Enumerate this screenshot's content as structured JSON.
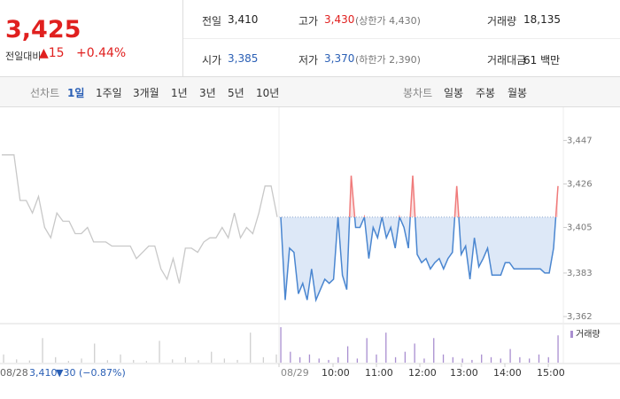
{
  "header": {
    "price": "3,425",
    "change_label": "전일대비",
    "change": "▲15",
    "change_rate": "+0.44%"
  },
  "summary": {
    "rows": [
      [
        {
          "label": "전일",
          "value": "3,410"
        },
        {
          "label": "고가",
          "value": "3,430",
          "extra": "(상한가 4,430)"
        },
        {
          "label": "거래량",
          "value": "18,135"
        }
      ],
      [
        {
          "label": "시가",
          "value": "3,385"
        },
        {
          "label": "저가",
          "value": "3,370",
          "extra": "(하한가 2,390)"
        },
        {
          "label": "거래대금",
          "value": "61 백만"
        }
      ]
    ]
  },
  "tabs": {
    "line_chart": "선차트",
    "periods": [
      "1일",
      "1주일",
      "3개월",
      "1년",
      "3년",
      "5년",
      "10년"
    ],
    "active": 0,
    "candle_chart": "봉차트",
    "candle_periods": [
      "일봉",
      "주봉",
      "월봉"
    ]
  },
  "chart_data": {
    "type": "line",
    "previous_day": {
      "color": "#c8c8c8",
      "values": [
        3440,
        3440,
        3440,
        3418,
        3418,
        3412,
        3420,
        3405,
        3400,
        3412,
        3408,
        3408,
        3402,
        3402,
        3405,
        3398,
        3398,
        3398,
        3396,
        3396,
        3396,
        3396,
        3390,
        3393,
        3396,
        3396,
        3385,
        3380,
        3390,
        3378,
        3395,
        3395,
        3393,
        3398,
        3400,
        3400,
        3405,
        3400,
        3412,
        3400,
        3405,
        3402,
        3412,
        3425,
        3425,
        3410
      ]
    },
    "today": {
      "color": "#4a86d0",
      "up_color": "#f07b7b",
      "values": [
        3410,
        3370,
        3395,
        3393,
        3373,
        3378,
        3370,
        3385,
        3370,
        3375,
        3380,
        3378,
        3380,
        3410,
        3382,
        3375,
        3430,
        3405,
        3405,
        3410,
        3390,
        3405,
        3400,
        3410,
        3400,
        3405,
        3395,
        3410,
        3405,
        3395,
        3430,
        3392,
        3388,
        3390,
        3385,
        3388,
        3390,
        3385,
        3390,
        3393,
        3425,
        3392,
        3396,
        3380,
        3400,
        3386,
        3390,
        3395,
        3382,
        3382,
        3382,
        3388,
        3388,
        3385,
        3385,
        3385,
        3385,
        3385,
        3385,
        3385,
        3383,
        3383,
        3395,
        3425
      ]
    },
    "baseline": 3410,
    "ylim": [
      3359,
      3463
    ],
    "yticks": [
      {
        "value": 3447,
        "label": "3,447"
      },
      {
        "value": 3426,
        "label": "3,426"
      },
      {
        "value": 3405,
        "label": "3,405"
      },
      {
        "value": 3383,
        "label": "3,383"
      },
      {
        "value": 3362,
        "label": "3,362"
      }
    ],
    "x_labels": [
      "08/28",
      "08/29",
      "10:00",
      "11:00",
      "12:00",
      "13:00",
      "14:00",
      "15:00"
    ],
    "volume_legend": "거래량",
    "previous_volume": {
      "color": "#cfcfcf",
      "values": [
        300,
        120,
        80,
        900,
        200,
        60,
        150,
        700,
        90,
        300,
        100,
        60,
        800,
        120,
        200,
        90,
        400,
        150,
        100,
        1100,
        200,
        300
      ]
    },
    "today_volume": {
      "color": "#a98fd0",
      "values": [
        1300,
        400,
        200,
        300,
        150,
        100,
        200,
        600,
        150,
        900,
        300,
        1100,
        200,
        400,
        700,
        150,
        900,
        300,
        200,
        150,
        100,
        300,
        200,
        150,
        500,
        200,
        150,
        300,
        200,
        1000
      ]
    }
  },
  "footer": {
    "date": "08/28",
    "price": "3,410",
    "change": "▼30",
    "rate": "(−0.87%)"
  }
}
